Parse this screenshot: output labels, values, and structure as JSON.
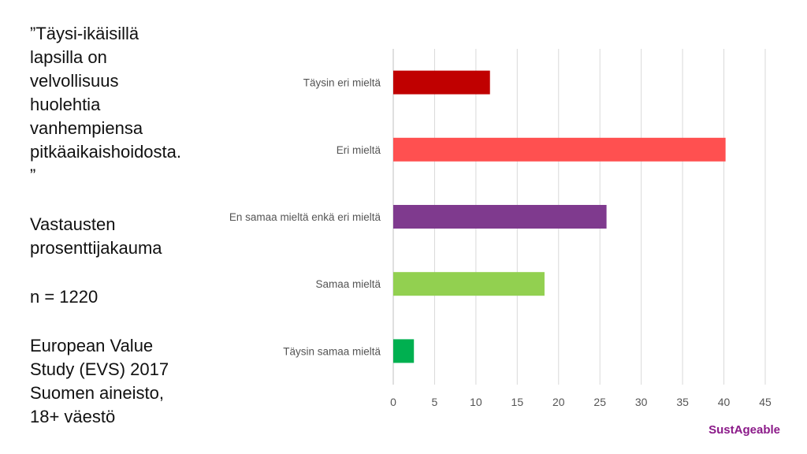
{
  "quote_text": "”Täysi-ikäisillä\nlapsilla on\nvelvollisuus\nhuolehtia\nvanhempiensa\npitkäaikaishoidosta.\n”",
  "subtitle": "Vastausten\nprosenttijakauma",
  "sample_size": "n = 1220",
  "source": "European Value\nStudy (EVS) 2017\nSuomen aineisto,\n18+ väestö",
  "brand": "SustAgeable",
  "colors": {
    "brand": "#8b1a89"
  },
  "chart_data": {
    "type": "bar",
    "orientation": "horizontal",
    "categories": [
      "Täysin eri mieltä",
      "Eri mieltä",
      "En samaa mieltä enkä eri mieltä",
      "Samaa mieltä",
      "Täysin samaa mieltä"
    ],
    "values": [
      11.7,
      40.2,
      25.8,
      18.3,
      2.5
    ],
    "colors": [
      "#c00000",
      "#ff5050",
      "#7f3a8e",
      "#92d050",
      "#00b050"
    ],
    "xlim": [
      0,
      45
    ],
    "xticks": [
      0,
      5,
      10,
      15,
      20,
      25,
      30,
      35,
      40,
      45
    ],
    "grid": "vertical",
    "legend": "none",
    "title": "",
    "xlabel": "",
    "ylabel": ""
  }
}
